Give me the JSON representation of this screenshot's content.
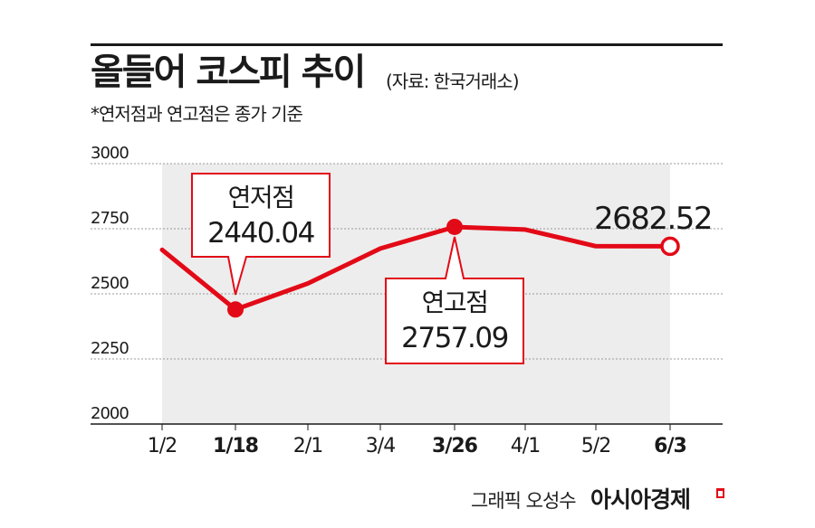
{
  "header": {
    "title": "올들어 코스피 추이",
    "source": "(자료: 한국거래소)",
    "note": "*연저점과 연고점은 종가 기준"
  },
  "footer": {
    "credit": "그래픽 오성수",
    "brand": "아시아경제"
  },
  "colors": {
    "line": "#e30a17",
    "area": "#ededed",
    "grid": "#999999",
    "text": "#1a1a1a"
  },
  "chart_data": {
    "type": "line",
    "categories": [
      "1/2",
      "1/18",
      "2/1",
      "3/4",
      "3/26",
      "4/1",
      "5/2",
      "6/3"
    ],
    "highlighted_categories": [
      "1/18",
      "3/26",
      "6/3"
    ],
    "series": [
      {
        "values": [
          2669,
          2440.04,
          2540,
          2674,
          2757.09,
          2747,
          2683,
          2682.52
        ]
      }
    ],
    "y_ticks": [
      "3000",
      "2750",
      "2500",
      "2250",
      "2000"
    ],
    "ylim": [
      2000,
      3000
    ],
    "grid": "horizontal dotted",
    "annotations": [
      {
        "category": "1/18",
        "lines": [
          "연저점",
          "2440.04"
        ],
        "style": "callout-above"
      },
      {
        "category": "3/26",
        "lines": [
          "연고점",
          "2757.09"
        ],
        "style": "callout-below"
      },
      {
        "category": "6/3",
        "lines": [
          "2682.52"
        ],
        "style": "label"
      }
    ]
  }
}
